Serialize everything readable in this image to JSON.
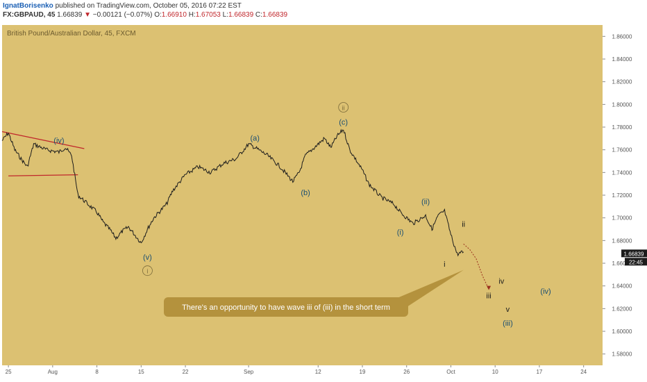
{
  "header": {
    "author": "IgnatBorisenko",
    "published": "published on TradingView.com, October 05, 2016 07:22 EST",
    "symbol": "FX:GBPAUD, 45",
    "last": "1.66839",
    "arrow": "▼",
    "change": "−0.00121 (−0.07%)",
    "o_label": "O:",
    "o_value": "1.66910",
    "h_label": "H:",
    "h_value": "1.67053",
    "l_label": "L:",
    "l_value": "1.66839",
    "c_label": "C:",
    "c_value": "1.66839"
  },
  "chart_data": {
    "type": "line",
    "title": "British Pound/Australian Dollar, 45, FXCM",
    "background": "#dcc172",
    "price_color": "#1c1c1c",
    "accent_red": "#c0262b",
    "wave_label_color": "#1b4f72",
    "ylim": [
      1.57,
      1.87
    ],
    "y_ticks": [
      1.58,
      1.6,
      1.62,
      1.64,
      1.66,
      1.68,
      1.7,
      1.72,
      1.74,
      1.76,
      1.78,
      1.8,
      1.82,
      1.84,
      1.86
    ],
    "y_tick_labels": [
      "1.58000",
      "1.60000",
      "1.62000",
      "1.64000",
      "1.66000",
      "1.68000",
      "1.70000",
      "1.72000",
      "1.74000",
      "1.76000",
      "1.78000",
      "1.80000",
      "1.82000",
      "1.84000",
      "1.86000"
    ],
    "xlim": [
      "2016-07-24",
      "2016-10-27"
    ],
    "x_ticks": [
      {
        "date": "2016-07-25",
        "label": "25"
      },
      {
        "date": "2016-08-01",
        "label": "Aug"
      },
      {
        "date": "2016-08-08",
        "label": "8"
      },
      {
        "date": "2016-08-15",
        "label": "15"
      },
      {
        "date": "2016-08-22",
        "label": "22"
      },
      {
        "date": "2016-09-01",
        "label": "Sep"
      },
      {
        "date": "2016-09-12",
        "label": "12"
      },
      {
        "date": "2016-09-19",
        "label": "19"
      },
      {
        "date": "2016-09-26",
        "label": "26"
      },
      {
        "date": "2016-10-03",
        "label": "Oct"
      },
      {
        "date": "2016-10-10",
        "label": "10"
      },
      {
        "date": "2016-10-17",
        "label": "17"
      },
      {
        "date": "2016-10-24",
        "label": "24"
      }
    ],
    "series": [
      {
        "x": [
          "2016-07-24",
          "2016-07-25",
          "2016-07-26",
          "2016-07-27",
          "2016-07-28",
          "2016-07-29",
          "2016-07-31",
          "2016-08-02",
          "2016-08-03",
          "2016-08-04",
          "2016-08-05",
          "2016-08-06",
          "2016-08-08",
          "2016-08-09",
          "2016-08-10",
          "2016-08-11",
          "2016-08-12",
          "2016-08-13",
          "2016-08-15",
          "2016-08-16",
          "2016-08-17",
          "2016-08-19",
          "2016-08-20",
          "2016-08-22",
          "2016-08-24",
          "2016-08-26",
          "2016-08-28",
          "2016-08-30",
          "2016-09-01",
          "2016-09-02",
          "2016-09-04",
          "2016-09-06",
          "2016-09-08",
          "2016-09-09",
          "2016-09-10",
          "2016-09-12",
          "2016-09-13",
          "2016-09-14",
          "2016-09-15",
          "2016-09-16",
          "2016-09-17",
          "2016-09-19",
          "2016-09-20",
          "2016-09-22",
          "2016-09-24",
          "2016-09-25",
          "2016-09-26",
          "2016-09-27",
          "2016-09-29",
          "2016-09-30",
          "2016-10-01",
          "2016-10-02",
          "2016-10-03",
          "2016-10-04",
          "2016-10-05"
        ],
        "values": [
          1.768,
          1.775,
          1.76,
          1.752,
          1.745,
          1.765,
          1.76,
          1.758,
          1.762,
          1.755,
          1.72,
          1.715,
          1.705,
          1.696,
          1.69,
          1.682,
          1.688,
          1.692,
          1.678,
          1.69,
          1.7,
          1.712,
          1.724,
          1.738,
          1.745,
          1.74,
          1.748,
          1.752,
          1.765,
          1.762,
          1.755,
          1.745,
          1.732,
          1.74,
          1.755,
          1.765,
          1.77,
          1.762,
          1.772,
          1.778,
          1.76,
          1.742,
          1.73,
          1.718,
          1.712,
          1.705,
          1.7,
          1.695,
          1.702,
          1.69,
          1.702,
          1.706,
          1.685,
          1.668,
          1.67
        ]
      }
    ],
    "projection": {
      "x": [
        "2016-10-05",
        "2016-10-06",
        "2016-10-07",
        "2016-10-08",
        "2016-10-09"
      ],
      "values": [
        1.677,
        1.672,
        1.664,
        1.649,
        1.637
      ]
    },
    "triangle_lines": [
      {
        "x": [
          "2016-07-24",
          "2016-08-06"
        ],
        "values": [
          1.776,
          1.761
        ]
      },
      {
        "x": [
          "2016-07-25",
          "2016-08-05"
        ],
        "values": [
          1.737,
          1.738
        ]
      }
    ],
    "annotation_pointer": {
      "x": "2016-10-05",
      "value": 1.654
    },
    "wave_labels": [
      {
        "text": "(iv)",
        "x": "2016-08-02",
        "y": 1.766,
        "circled": false
      },
      {
        "text": "(v)",
        "x": "2016-08-16",
        "y": 1.663,
        "circled": false
      },
      {
        "text": "i",
        "x": "2016-08-16",
        "y": 1.651,
        "circled": true
      },
      {
        "text": "(a)",
        "x": "2016-09-02",
        "y": 1.768,
        "circled": false
      },
      {
        "text": "(b)",
        "x": "2016-09-10",
        "y": 1.72,
        "circled": false
      },
      {
        "text": "ii",
        "x": "2016-09-16",
        "y": 1.795,
        "circled": true
      },
      {
        "text": "(c)",
        "x": "2016-09-16",
        "y": 1.782,
        "circled": false
      },
      {
        "text": "(i)",
        "x": "2016-09-25",
        "y": 1.685,
        "circled": false
      },
      {
        "text": "(ii)",
        "x": "2016-09-29",
        "y": 1.712,
        "circled": false
      },
      {
        "text": "i",
        "x": "2016-10-02",
        "y": 1.657,
        "circled": false
      },
      {
        "text": "ii",
        "x": "2016-10-05",
        "y": 1.692,
        "circled": false
      },
      {
        "text": "iv",
        "x": "2016-10-11",
        "y": 1.642,
        "circled": false
      },
      {
        "text": "iii",
        "x": "2016-10-09",
        "y": 1.629,
        "circled": false
      },
      {
        "text": "(iv)",
        "x": "2016-10-18",
        "y": 1.633,
        "circled": false
      },
      {
        "text": "v",
        "x": "2016-10-12",
        "y": 1.617,
        "circled": false
      },
      {
        "text": "(iii)",
        "x": "2016-10-12",
        "y": 1.605,
        "circled": false
      }
    ],
    "annotation_text": "There's an opportunity to have wave iii of (iii) in the short term",
    "last_price_label": "1.66839",
    "countdown_label": "22:45"
  }
}
